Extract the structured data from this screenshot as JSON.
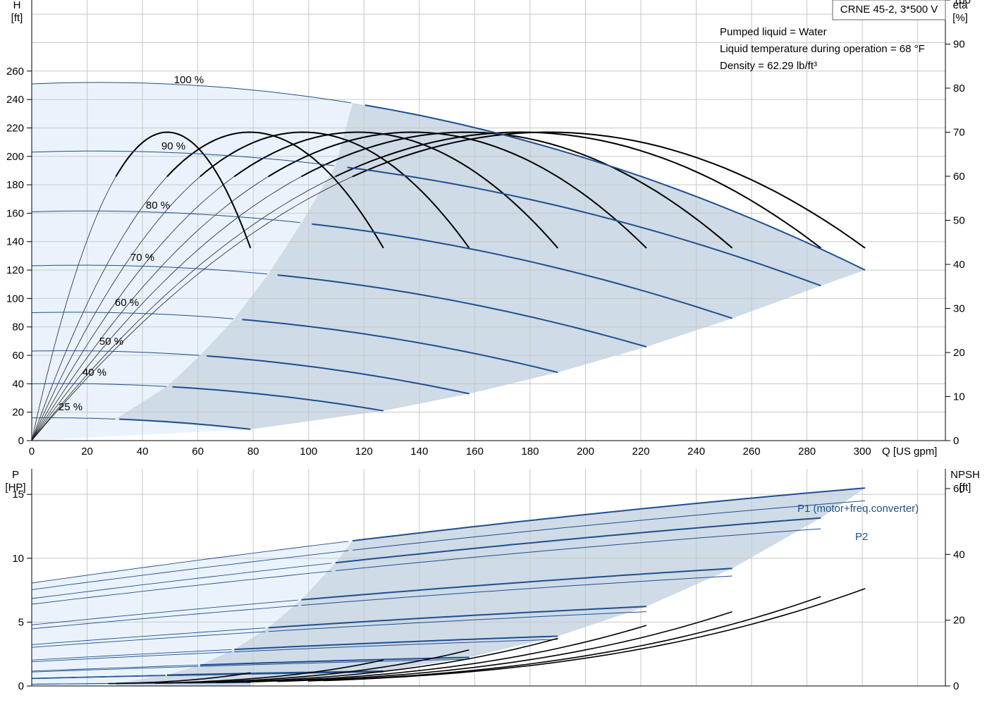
{
  "chart_data": [
    {
      "type": "line",
      "title": "CRNE 45-2, 3*500 V",
      "info_lines": [
        "Pumped liquid = Water",
        "Liquid temperature during operation = 68 °F",
        "Density = 62.29 lb/ft³"
      ],
      "xlabel": "Q [US gpm]",
      "ylabel_left": [
        "H",
        "[ft]"
      ],
      "ylabel_right": [
        "eta",
        "[%]"
      ],
      "xlim": [
        0,
        330
      ],
      "ylim_left": [
        0,
        310
      ],
      "ylim_right": [
        0,
        100
      ],
      "x_ticks": [
        "0",
        "20",
        "40",
        "60",
        "80",
        "100",
        "120",
        "140",
        "160",
        "180",
        "200",
        "220",
        "240",
        "260",
        "280",
        "300"
      ],
      "y_ticks_left": [
        "0",
        "20",
        "40",
        "60",
        "80",
        "100",
        "120",
        "140",
        "160",
        "180",
        "200",
        "220",
        "240",
        "260"
      ],
      "y_ticks_right": [
        "0",
        "10",
        "20",
        "30",
        "40",
        "50",
        "60",
        "70",
        "80",
        "90",
        "100"
      ],
      "grid": true,
      "head_curves": [
        {
          "speed_label": "100 %",
          "shut_off_head": 251,
          "max_flow": 301,
          "end_head": 120
        },
        {
          "speed_label": "90 %",
          "shut_off_head": 203,
          "max_flow": 285,
          "end_head": 109
        },
        {
          "speed_label": "80 %",
          "shut_off_head": 161,
          "max_flow": 253,
          "end_head": 86
        },
        {
          "speed_label": "70 %",
          "shut_off_head": 123,
          "max_flow": 222,
          "end_head": 66
        },
        {
          "speed_label": "60 %",
          "shut_off_head": 90,
          "max_flow": 190,
          "end_head": 48
        },
        {
          "speed_label": "50 %",
          "shut_off_head": 63,
          "max_flow": 158,
          "end_head": 33
        },
        {
          "speed_label": "40 %",
          "shut_off_head": 40,
          "max_flow": 127,
          "end_head": 21
        },
        {
          "speed_label": "25 %",
          "shut_off_head": 16,
          "max_flow": 79,
          "end_head": 8
        }
      ],
      "efficiency_peak_percent": 70
    },
    {
      "type": "line",
      "xlim": [
        0,
        330
      ],
      "ylabel_left": [
        "P",
        "[HP]"
      ],
      "ylabel_right": [
        "NPSH",
        "[ft]"
      ],
      "ylim_left": [
        0,
        17
      ],
      "ylim_right": [
        0,
        66
      ],
      "y_ticks_left": [
        "0",
        "5",
        "10",
        "15"
      ],
      "y_ticks_right": [
        "0",
        "20",
        "40",
        "60"
      ],
      "grid": true,
      "series": [
        {
          "name": "P1 (motor+freq.converter)",
          "at_max_flow_hp": 15.5
        },
        {
          "name": "P2",
          "at_max_flow_hp": 14.5
        }
      ],
      "npsh_at_max_flow_ft": 29
    }
  ],
  "colors": {
    "navy": "#1f4f8f",
    "light_region": "#eaf3fb",
    "dark_region": "#cfdbe7",
    "grid": "#c8c8c8"
  }
}
